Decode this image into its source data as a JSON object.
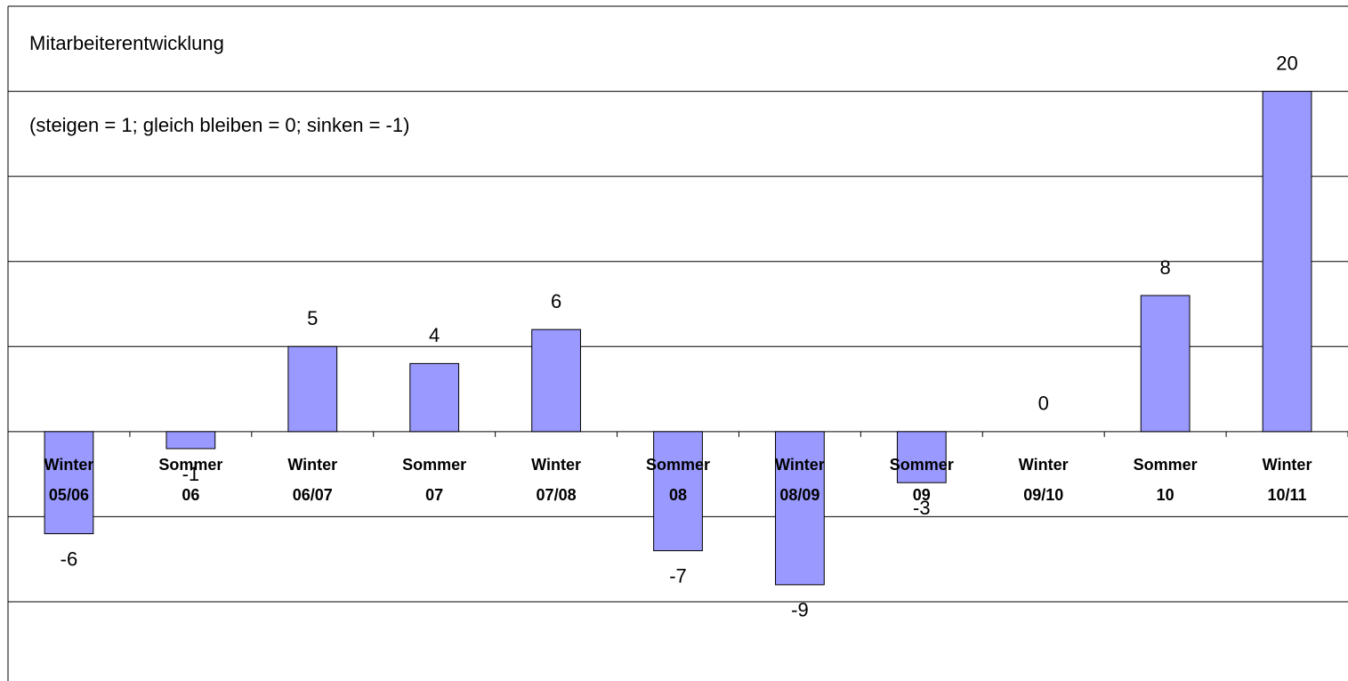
{
  "chart_data": {
    "type": "bar",
    "title": "Mitarbeiterentwicklung",
    "subtitle": "(steigen = 1; gleich bleiben = 0; sinken = -1)",
    "categories": [
      "Winter\n05/06",
      "Sommer\n06",
      "Winter\n06/07",
      "Sommer\n07",
      "Winter\n07/08",
      "Sommer\n08",
      "Winter\n08/09",
      "Sommer\n09",
      "Winter\n09/10",
      "Sommer\n10",
      "Winter\n10/11"
    ],
    "values": [
      -6,
      -1,
      5,
      4,
      6,
      -7,
      -9,
      -3,
      0,
      8,
      20
    ],
    "color": "#9999ff",
    "ylim": [
      -15,
      25
    ],
    "yticks": [
      -10,
      -5,
      0,
      5,
      10,
      15,
      20,
      25
    ],
    "grid": true
  }
}
